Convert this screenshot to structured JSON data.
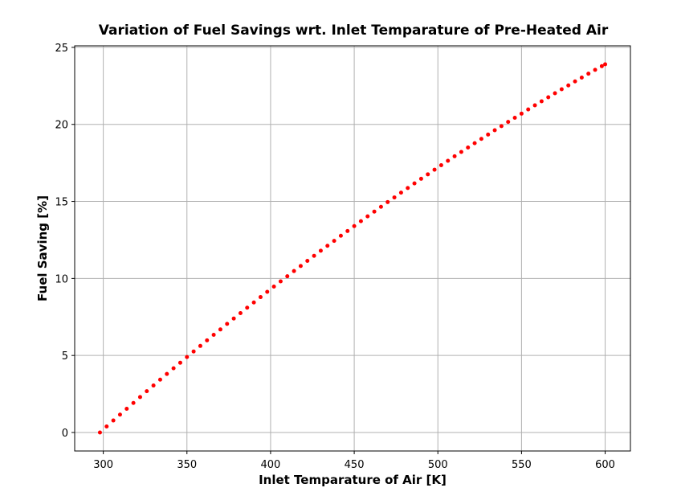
{
  "chart_data": {
    "type": "scatter",
    "title": "Variation of Fuel Savings wrt. Inlet Temparature of Pre-Heated Air",
    "x_label": "Inlet Temparature of Air [K]",
    "y_label": "Fuel Saving [%]",
    "series": [
      {
        "name": "Fuel Saving",
        "color": "#ff0000",
        "x": [
          298,
          302,
          306,
          310,
          314,
          318,
          322,
          326,
          330,
          334,
          338,
          342,
          346,
          350,
          354,
          358,
          362,
          366,
          370,
          374,
          378,
          382,
          386,
          390,
          394,
          398,
          402,
          406,
          410,
          414,
          418,
          422,
          426,
          430,
          434,
          438,
          442,
          446,
          450,
          454,
          458,
          462,
          466,
          470,
          474,
          478,
          482,
          486,
          490,
          494,
          498,
          502,
          506,
          510,
          514,
          518,
          522,
          526,
          530,
          534,
          538,
          542,
          546,
          550,
          554,
          558,
          562,
          566,
          570,
          574,
          578,
          582,
          586,
          590,
          594,
          598,
          600
        ],
        "values": [
          0,
          0.39,
          0.78,
          1.16,
          1.54,
          1.92,
          2.3,
          2.68,
          3.05,
          3.43,
          3.8,
          4.17,
          4.53,
          4.9,
          5.26,
          5.62,
          5.98,
          6.34,
          6.69,
          7.05,
          7.4,
          7.75,
          8.1,
          8.44,
          8.79,
          9.13,
          9.47,
          9.81,
          10.14,
          10.48,
          10.81,
          11.14,
          11.47,
          11.8,
          12.12,
          12.44,
          12.77,
          13.08,
          13.4,
          13.72,
          14.03,
          14.34,
          14.65,
          14.96,
          15.26,
          15.57,
          15.87,
          16.17,
          16.47,
          16.76,
          17.06,
          17.35,
          17.64,
          17.93,
          18.21,
          18.5,
          18.78,
          19.06,
          19.34,
          19.62,
          19.89,
          20.16,
          20.43,
          20.7,
          20.97,
          21.24,
          21.5,
          21.76,
          22.02,
          22.28,
          22.53,
          22.79,
          23.04,
          23.29,
          23.54,
          23.78,
          23.9
        ]
      }
    ],
    "xlim": [
      282.9,
      615.1
    ],
    "xticks": [
      300,
      350,
      400,
      450,
      500,
      550,
      600
    ],
    "ylim": [
      -1.2,
      25.1
    ],
    "yticks": [
      0,
      5,
      10,
      15,
      20,
      25
    ],
    "grid": true
  }
}
